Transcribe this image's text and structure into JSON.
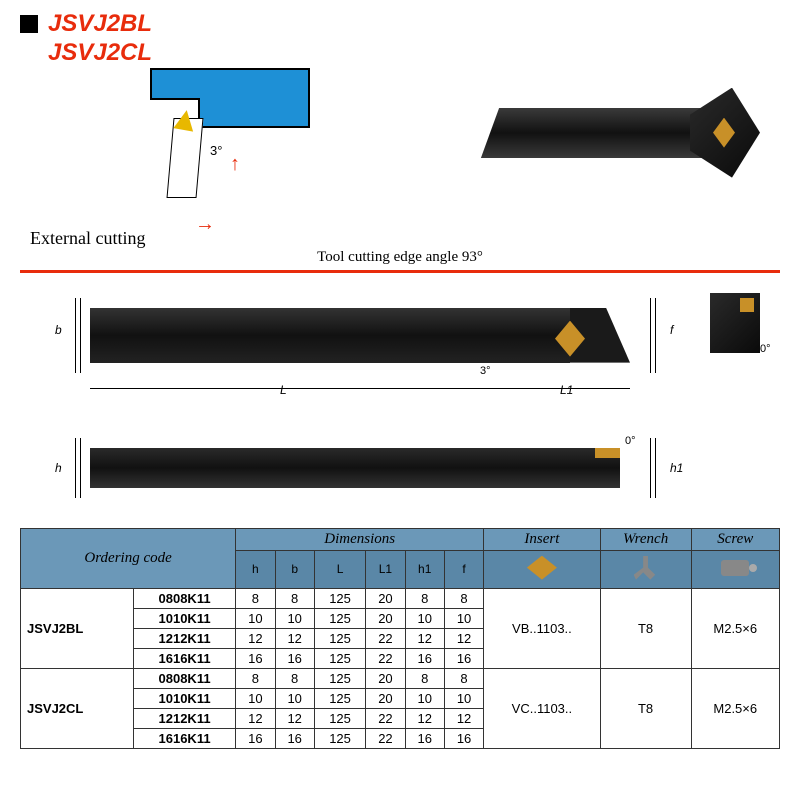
{
  "header": {
    "model1": "JSVJ2BL",
    "model2": "JSVJ2CL"
  },
  "schematic": {
    "angle": "3°"
  },
  "section": {
    "label": "External cutting",
    "subtitle": "Tool cutting edge angle 93°"
  },
  "dimensions": {
    "b": "b",
    "f": "f",
    "L": "L",
    "L1": "L1",
    "h": "h",
    "h1": "h1",
    "ang3": "3°",
    "ang0": "0°"
  },
  "table": {
    "headers": {
      "ordering": "Ordering code",
      "dims": "Dimensions",
      "insert": "Insert",
      "wrench": "Wrench",
      "screw": "Screw",
      "h": "h",
      "b": "b",
      "L": "L",
      "L1": "L1",
      "h1": "h1",
      "f": "f"
    },
    "groups": [
      {
        "code": "JSVJ2BL",
        "insert": "VB..1103..",
        "wrench": "T8",
        "screw": "M2.5×6",
        "rows": [
          {
            "sub": "0808K11",
            "h": "8",
            "b": "8",
            "L": "125",
            "L1": "20",
            "h1": "8",
            "f": "8"
          },
          {
            "sub": "1010K11",
            "h": "10",
            "b": "10",
            "L": "125",
            "L1": "20",
            "h1": "10",
            "f": "10"
          },
          {
            "sub": "1212K11",
            "h": "12",
            "b": "12",
            "L": "125",
            "L1": "22",
            "h1": "12",
            "f": "12"
          },
          {
            "sub": "1616K11",
            "h": "16",
            "b": "16",
            "L": "125",
            "L1": "22",
            "h1": "16",
            "f": "16"
          }
        ]
      },
      {
        "code": "JSVJ2CL",
        "insert": "VC..1103..",
        "wrench": "T8",
        "screw": "M2.5×6",
        "rows": [
          {
            "sub": "0808K11",
            "h": "8",
            "b": "8",
            "L": "125",
            "L1": "20",
            "h1": "8",
            "f": "8"
          },
          {
            "sub": "1010K11",
            "h": "10",
            "b": "10",
            "L": "125",
            "L1": "20",
            "h1": "10",
            "f": "10"
          },
          {
            "sub": "1212K11",
            "h": "12",
            "b": "12",
            "L": "125",
            "L1": "22",
            "h1": "12",
            "f": "12"
          },
          {
            "sub": "1616K11",
            "h": "16",
            "b": "16",
            "L": "125",
            "L1": "22",
            "h1": "16",
            "f": "16"
          }
        ]
      }
    ]
  }
}
